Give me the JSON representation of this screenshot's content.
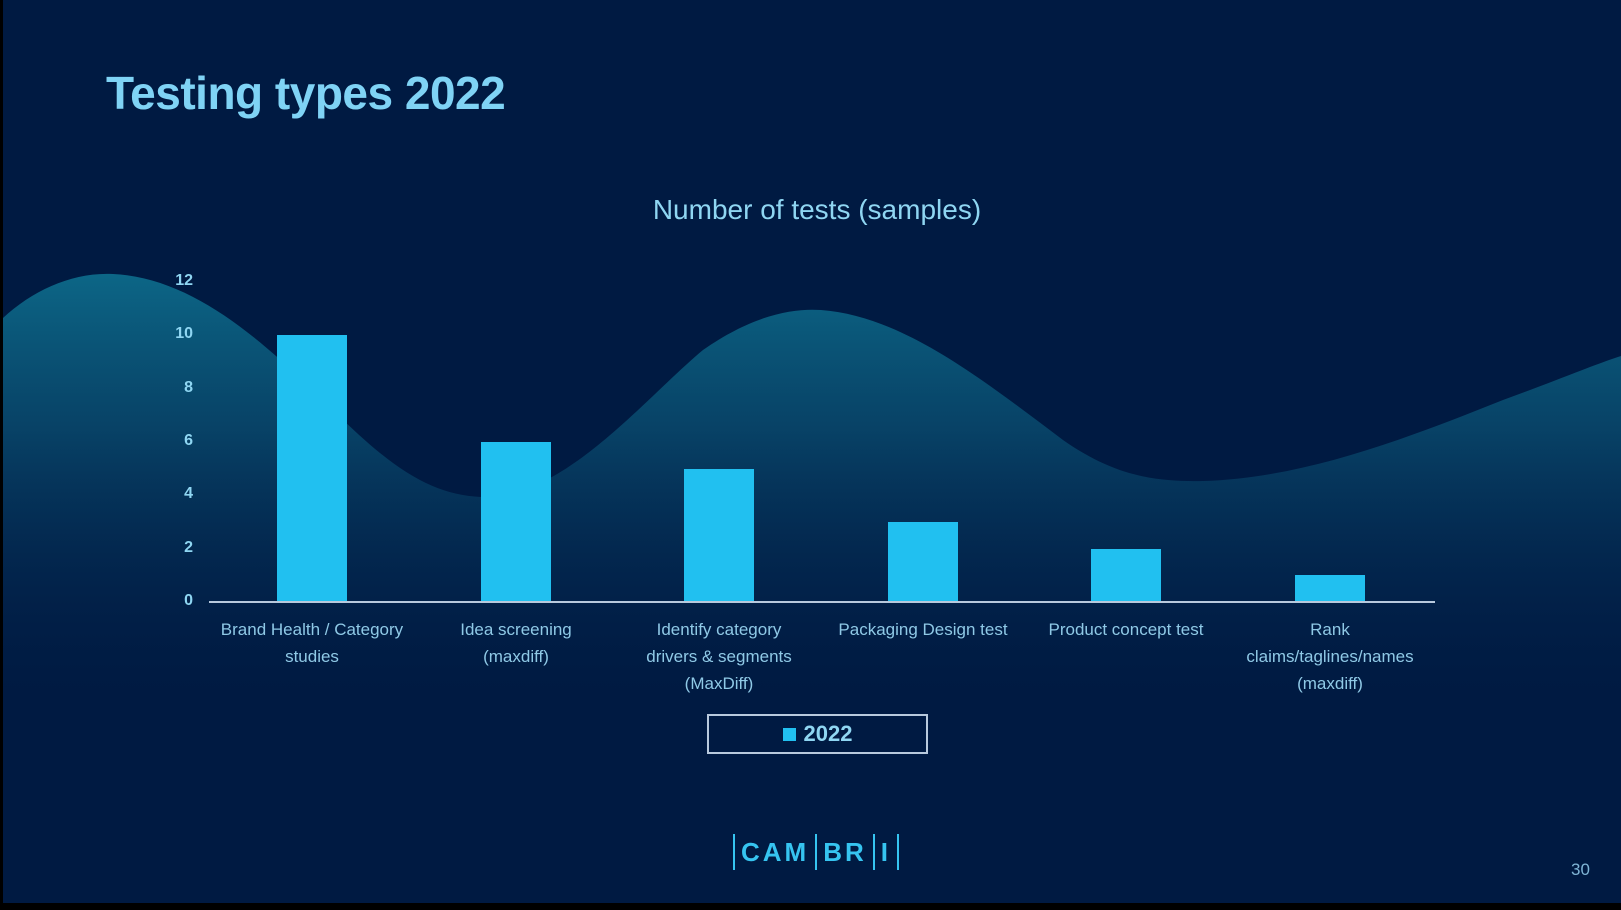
{
  "slide": {
    "title": "Testing types 2022",
    "page_number": "30",
    "logo": {
      "parts": [
        "CAM",
        "BR",
        "I"
      ]
    },
    "colors": {
      "background": "#001a42",
      "bar": "#21c0f0",
      "title": "#7fd3f5",
      "wave": "#0b5a7a"
    }
  },
  "chart_data": {
    "type": "bar",
    "title": "Number of tests (samples)",
    "categories": [
      "Brand Health / Category studies",
      "Idea screening (maxdiff)",
      "Identify category drivers & segments (MaxDiff)",
      "Packaging Design test",
      "Product concept test",
      "Rank claims/taglines/names (maxdiff)"
    ],
    "category_label_lines": [
      [
        "Brand Health / Category",
        "studies"
      ],
      [
        "Idea screening",
        "(maxdiff)"
      ],
      [
        "Identify category",
        "drivers & segments",
        "(MaxDiff)"
      ],
      [
        "Packaging Design test"
      ],
      [
        "Product concept test"
      ],
      [
        "Rank",
        "claims/taglines/names",
        "(maxdiff)"
      ]
    ],
    "series": [
      {
        "name": "2022",
        "values": [
          10,
          6,
          5,
          3,
          2,
          1
        ],
        "color": "#21c0f0"
      }
    ],
    "yticks": [
      "0",
      "2",
      "4",
      "6",
      "8",
      "10",
      "12"
    ],
    "ylim": [
      0,
      12
    ],
    "xlabel": "",
    "ylabel": "",
    "grid": false,
    "legend": {
      "position": "bottom",
      "entries": [
        "2022"
      ]
    }
  }
}
